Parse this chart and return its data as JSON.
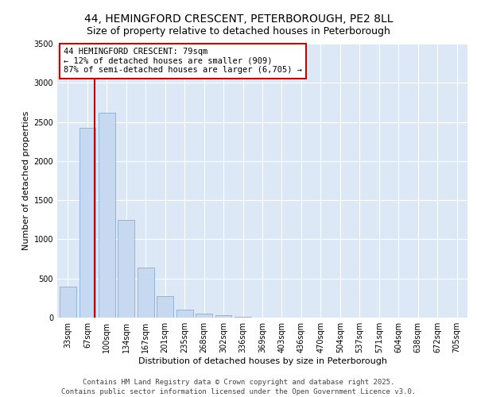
{
  "title": "44, HEMINGFORD CRESCENT, PETERBOROUGH, PE2 8LL",
  "subtitle": "Size of property relative to detached houses in Peterborough",
  "xlabel": "Distribution of detached houses by size in Peterborough",
  "ylabel": "Number of detached properties",
  "bar_values": [
    400,
    2420,
    2620,
    1250,
    640,
    270,
    105,
    55,
    30,
    10,
    5,
    3,
    2,
    1,
    0,
    0,
    0,
    0,
    0,
    0,
    0
  ],
  "bin_labels": [
    "33sqm",
    "67sqm",
    "100sqm",
    "134sqm",
    "167sqm",
    "201sqm",
    "235sqm",
    "268sqm",
    "302sqm",
    "336sqm",
    "369sqm",
    "403sqm",
    "436sqm",
    "470sqm",
    "504sqm",
    "537sqm",
    "571sqm",
    "604sqm",
    "638sqm",
    "672sqm",
    "705sqm"
  ],
  "bar_color": "#c6d9f1",
  "bar_edge_color": "#8aadd4",
  "vline_x": 1.37,
  "vline_color": "#cc0000",
  "annotation_title": "44 HEMINGFORD CRESCENT: 79sqm",
  "annotation_line1": "← 12% of detached houses are smaller (909)",
  "annotation_line2": "87% of semi-detached houses are larger (6,705) →",
  "annotation_box_color": "#cc0000",
  "ylim": [
    0,
    3500
  ],
  "yticks": [
    0,
    500,
    1000,
    1500,
    2000,
    2500,
    3000,
    3500
  ],
  "bg_color": "#dce8f5",
  "footer_line1": "Contains HM Land Registry data © Crown copyright and database right 2025.",
  "footer_line2": "Contains public sector information licensed under the Open Government Licence v3.0.",
  "title_fontsize": 10,
  "subtitle_fontsize": 9,
  "axis_fontsize": 8,
  "tick_fontsize": 7,
  "footer_fontsize": 6.5,
  "annot_fontsize": 7.5
}
